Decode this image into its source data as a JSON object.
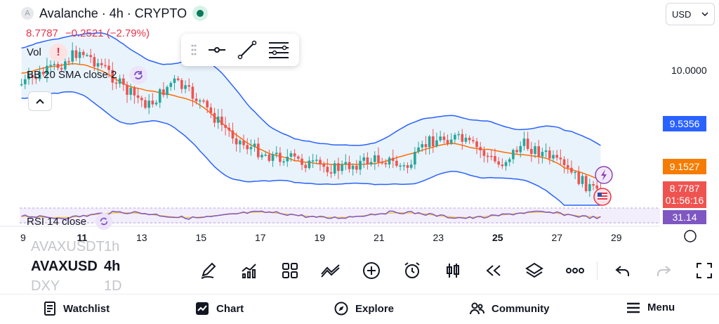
{
  "header": {
    "symbol_badge": "A",
    "title": "Avalanche · 4h · CRYPTO",
    "last_price": "8.7787",
    "change": "−0.2521 (−2.79%)"
  },
  "indicators": {
    "volume_label": "Vol",
    "bb_label": "BB 20 SMA close 2",
    "rsi_label": "RSI 14 close",
    "warn_symbol": "!"
  },
  "currency": {
    "value": "USD"
  },
  "price_axis": {
    "level_10": "10.0000",
    "bb_upper": "9.5356",
    "bb_mid": "9.1527",
    "last": "8.7787",
    "countdown": "01:56:16",
    "rsi": "31.14"
  },
  "x_axis": [
    {
      "label": "9",
      "bold": false
    },
    {
      "label": "11",
      "bold": true
    },
    {
      "label": "13",
      "bold": false
    },
    {
      "label": "15",
      "bold": false
    },
    {
      "label": "17",
      "bold": false
    },
    {
      "label": "19",
      "bold": false
    },
    {
      "label": "21",
      "bold": false
    },
    {
      "label": "23",
      "bold": false
    },
    {
      "label": "25",
      "bold": true
    },
    {
      "label": "27",
      "bold": false
    },
    {
      "label": "29",
      "bold": false
    }
  ],
  "watchlist": [
    {
      "symbol": "AVAXUSDT",
      "interval": "1h"
    },
    {
      "symbol": "AVAXUSD",
      "interval": "4h"
    },
    {
      "symbol": "DXY",
      "interval": "1D"
    }
  ],
  "colors": {
    "up": "#26a69a",
    "down": "#ef5350",
    "bb_band": "#2962ff",
    "bb_basis": "#ff6d00",
    "bb_fill": "#e3f0fb",
    "rsi": "#7e57c2",
    "blue_tag": "#2962ff",
    "orange_tag": "#f57c00",
    "red_tag": "#ef5350",
    "purple_tag": "#7e57c2"
  },
  "nav": {
    "watchlist": "Watchlist",
    "chart": "Chart",
    "explore": "Explore",
    "community": "Community",
    "menu": "Menu"
  }
}
